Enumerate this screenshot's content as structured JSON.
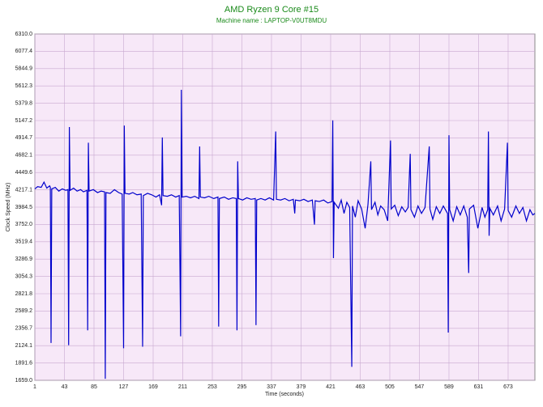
{
  "chart_data": {
    "type": "line",
    "title": "AMD Ryzen 9 Core #15",
    "subtitle": "Machine name : LAPTOP-V0UT8MDU",
    "x_label": "Time (seconds)",
    "y_label": "Clock Speed (MHz)",
    "xlim": [
      1,
      711
    ],
    "ylim": [
      1659.0,
      6310.0
    ],
    "xticks": [
      1,
      43,
      85,
      127,
      169,
      211,
      253,
      295,
      337,
      379,
      421,
      463,
      505,
      547,
      589,
      631,
      673
    ],
    "yticks": [
      {
        "value": 1659.0,
        "label": "1659.0"
      },
      1891.6,
      2124.1,
      2356.7,
      2589.2,
      2821.8,
      3054.3,
      3286.9,
      3519.4,
      {
        "value": 3752.0,
        "label": "3752.0"
      },
      3984.5,
      4217.1,
      4449.6,
      4682.1,
      4914.7,
      5147.2,
      5379.8,
      5612.3,
      5844.9,
      6077.4,
      {
        "value": 6310.0,
        "label": "6310.0"
      }
    ],
    "grid": true,
    "x": [
      1,
      5,
      10,
      14,
      18,
      22,
      23,
      24,
      25,
      30,
      35,
      40,
      45,
      48,
      49,
      50,
      51,
      56,
      61,
      66,
      70,
      75,
      76,
      77,
      78,
      84,
      90,
      95,
      100,
      101,
      102,
      108,
      114,
      120,
      125,
      127,
      128,
      129,
      135,
      140,
      146,
      152,
      154,
      155,
      161,
      167,
      173,
      178,
      181,
      182,
      183,
      189,
      195,
      201,
      206,
      208,
      209,
      210,
      216,
      222,
      228,
      234,
      235,
      236,
      242,
      248,
      255,
      261,
      262,
      263,
      270,
      276,
      282,
      287,
      288,
      289,
      290,
      296,
      302,
      308,
      314,
      315,
      316,
      322,
      328,
      334,
      340,
      343,
      344,
      350,
      356,
      362,
      368,
      370,
      371,
      377,
      383,
      389,
      395,
      398,
      399,
      405,
      411,
      417,
      423,
      424,
      425,
      426,
      432,
      436,
      440,
      444,
      448,
      451,
      452,
      456,
      460,
      465,
      470,
      474,
      478,
      479,
      484,
      488,
      492,
      497,
      502,
      506,
      507,
      512,
      517,
      522,
      527,
      531,
      534,
      535,
      540,
      545,
      550,
      555,
      561,
      562,
      566,
      571,
      576,
      581,
      587,
      588,
      589,
      590,
      595,
      600,
      605,
      610,
      615,
      617,
      618,
      624,
      630,
      636,
      640,
      644,
      645,
      646,
      647,
      652,
      658,
      663,
      668,
      672,
      673,
      678,
      684,
      689,
      694,
      699,
      704,
      708,
      711
    ],
    "series": [
      {
        "name": "Core #15",
        "color": "#0000cc",
        "values": [
          4230,
          4260,
          4250,
          4320,
          4240,
          4270,
          4250,
          2160,
          4230,
          4250,
          4200,
          4230,
          4210,
          4220,
          2130,
          5060,
          4210,
          4240,
          4200,
          4220,
          4190,
          4210,
          2330,
          4850,
          4200,
          4220,
          4180,
          4200,
          4190,
          1680,
          4180,
          4170,
          4220,
          4180,
          4160,
          2090,
          5080,
          4170,
          4160,
          4180,
          4150,
          4160,
          2110,
          4140,
          4170,
          4150,
          4120,
          4150,
          4010,
          4920,
          4140,
          4130,
          4150,
          4120,
          4140,
          2250,
          5560,
          4120,
          4130,
          4110,
          4130,
          4100,
          4800,
          4120,
          4110,
          4130,
          4100,
          4120,
          2380,
          4100,
          4120,
          4090,
          4110,
          4100,
          2330,
          4600,
          4100,
          4080,
          4110,
          4090,
          4100,
          2400,
          4080,
          4100,
          4080,
          4110,
          4080,
          5000,
          4090,
          4080,
          4100,
          4070,
          4090,
          3900,
          4080,
          4070,
          4090,
          4060,
          4080,
          3750,
          4070,
          4060,
          4080,
          4040,
          4060,
          5150,
          3300,
          4050,
          3970,
          4080,
          3900,
          4050,
          3980,
          1840,
          4000,
          3850,
          4070,
          3960,
          3700,
          4020,
          4600,
          3950,
          4050,
          3880,
          4000,
          3950,
          3800,
          4880,
          3960,
          4010,
          3870,
          3990,
          3920,
          3980,
          4700,
          3950,
          3850,
          4000,
          3900,
          3980,
          4800,
          3960,
          3820,
          3990,
          3900,
          4000,
          3900,
          2300,
          4950,
          3950,
          3800,
          3990,
          3880,
          4000,
          3850,
          3100,
          3960,
          4010,
          3700,
          3980,
          3850,
          3950,
          5000,
          3600,
          3970,
          3880,
          4000,
          3800,
          3960,
          4850,
          3940,
          3850,
          4000,
          3900,
          3980,
          3800,
          3950,
          3880,
          3900
        ]
      }
    ]
  }
}
